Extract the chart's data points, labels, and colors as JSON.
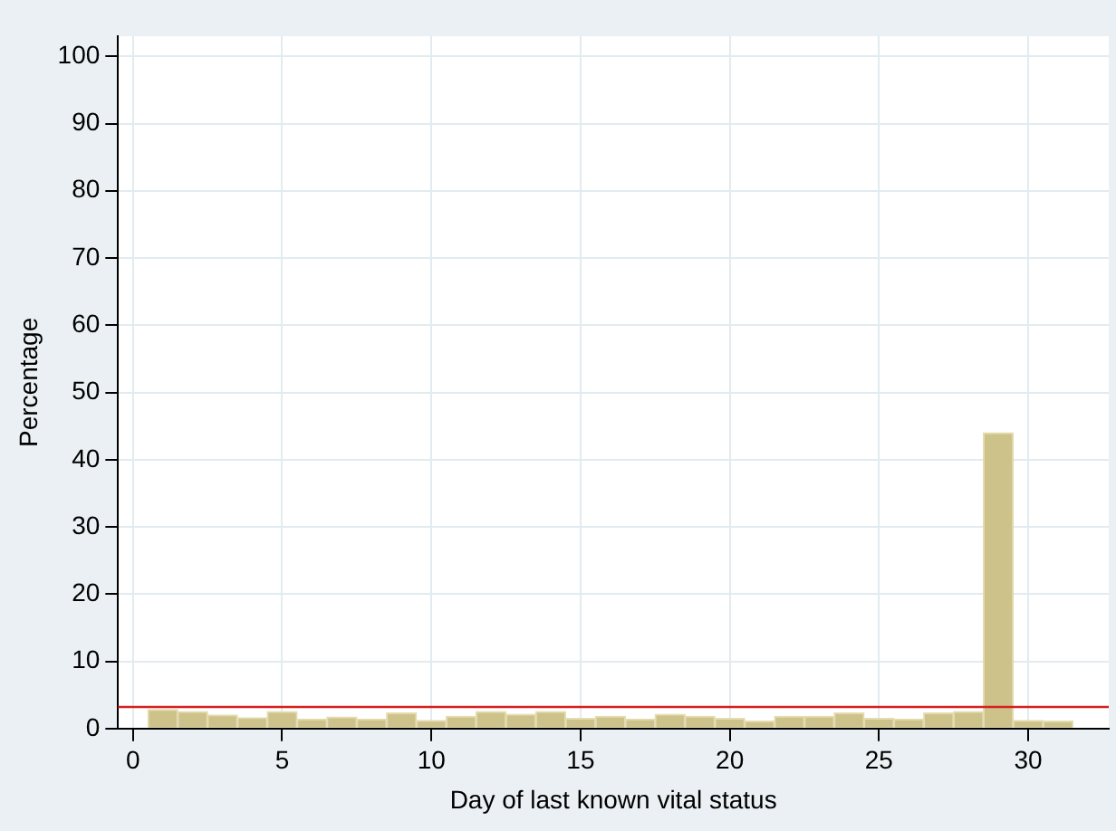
{
  "chart_data": {
    "type": "histogram",
    "xlabel": "Day of last known vital status",
    "ylabel": "Percentage",
    "bins": [
      0.5,
      1.5,
      2.5,
      3.5,
      4.5,
      5.5,
      6.5,
      7.5,
      8.5,
      9.5,
      10.5,
      11.5,
      12.5,
      13.5,
      14.5,
      15.5,
      16.5,
      17.5,
      18.5,
      19.5,
      20.5,
      21.5,
      22.5,
      23.5,
      24.5,
      25.5,
      26.5,
      27.5,
      28.5,
      29.5,
      30.5,
      31.5
    ],
    "values": [
      2.8,
      2.5,
      2.0,
      1.6,
      2.5,
      1.4,
      1.7,
      1.4,
      2.3,
      1.2,
      1.8,
      2.5,
      2.1,
      2.5,
      1.5,
      1.8,
      1.4,
      2.1,
      1.8,
      1.5,
      1.1,
      1.8,
      1.8,
      2.3,
      1.5,
      1.4,
      2.3,
      2.5,
      44,
      1.2,
      1.1
    ],
    "color": "#cdc38a",
    "xlim": [
      -0.5,
      32.7
    ],
    "xticks": [
      0,
      5,
      10,
      15,
      20,
      25,
      30
    ],
    "ylim": [
      0,
      103
    ],
    "yticks": [
      0,
      10,
      20,
      30,
      40,
      50,
      60,
      70,
      80,
      90,
      100
    ],
    "grid": true,
    "ref_lines": [
      {
        "axis": "y",
        "value": 3.2,
        "color": "#d42020"
      }
    ]
  }
}
